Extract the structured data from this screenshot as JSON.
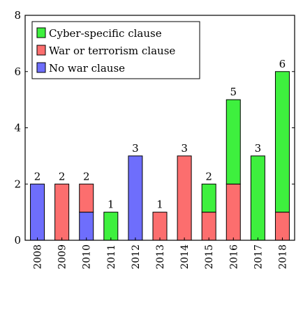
{
  "chart_data": {
    "type": "bar",
    "stacked": true,
    "title": "",
    "xlabel": "",
    "ylabel": "",
    "ylim": [
      0,
      8
    ],
    "yticks": [
      0,
      2,
      4,
      6,
      8
    ],
    "grid": false,
    "legend_position": "top-left",
    "categories": [
      "2008",
      "2009",
      "2010",
      "2011",
      "2012",
      "2013",
      "2014",
      "2015",
      "2016",
      "2017",
      "2018"
    ],
    "series": [
      {
        "name": "No war clause",
        "color": "#6e6efc",
        "values": [
          2,
          0,
          1,
          0,
          3,
          0,
          0,
          0,
          0,
          0,
          0
        ]
      },
      {
        "name": "War or terrorism clause",
        "color": "#fc6e6e",
        "values": [
          0,
          2,
          1,
          0,
          0,
          1,
          3,
          1,
          2,
          0,
          1
        ]
      },
      {
        "name": "Cyber-specific clause",
        "color": "#3ef03e",
        "values": [
          0,
          0,
          0,
          1,
          0,
          0,
          0,
          1,
          3,
          3,
          5
        ]
      }
    ],
    "totals": [
      "2",
      "2",
      "2",
      "1",
      "3",
      "1",
      "3",
      "2",
      "5",
      "3",
      "6"
    ],
    "legend_order": [
      "Cyber-specific clause",
      "War or terrorism clause",
      "No war clause"
    ]
  }
}
